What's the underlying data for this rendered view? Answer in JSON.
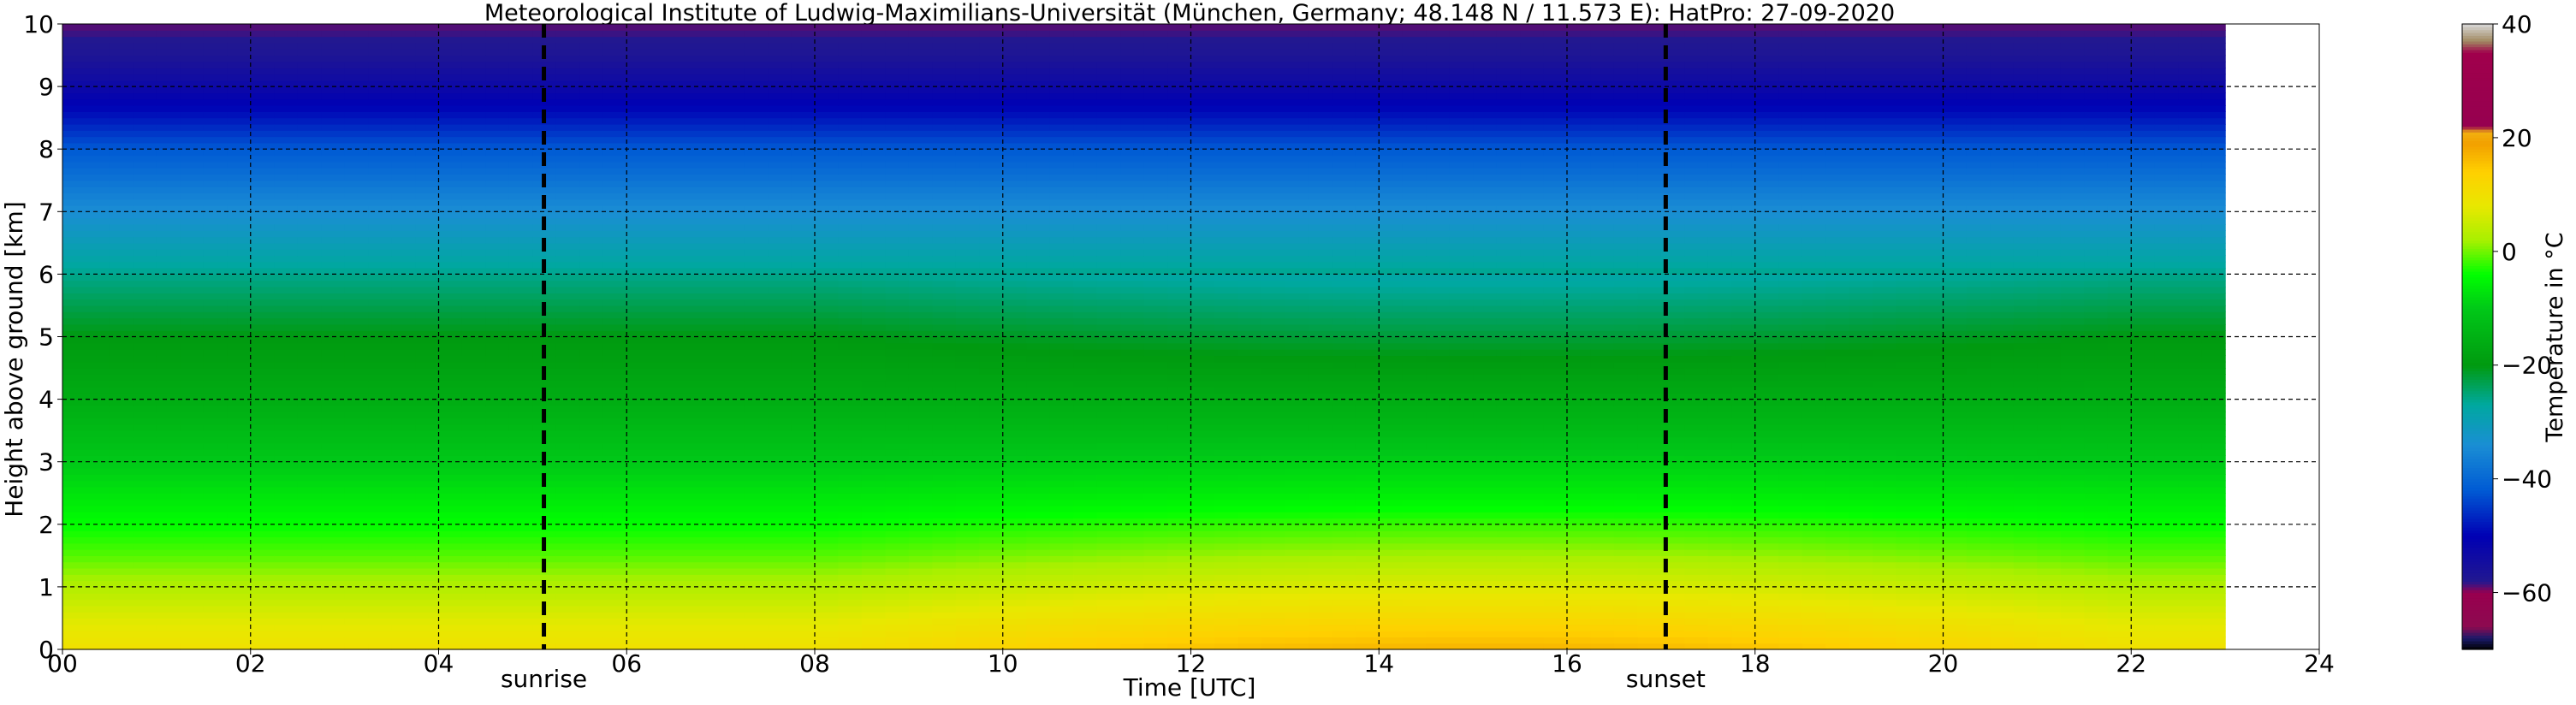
{
  "chart_data": {
    "type": "heatmap",
    "title": "Meteorological Institute of Ludwig-Maximilians-Universität (München, Germany; 48.148 N / 11.573 E):    HatPro: 27-09-2020",
    "xlabel": "Time [UTC]",
    "ylabel": "Height above ground [km]",
    "xlim": [
      0,
      24
    ],
    "ylim": [
      0,
      10
    ],
    "x_ticks": [
      0,
      2,
      4,
      6,
      8,
      10,
      12,
      14,
      16,
      18,
      20,
      22,
      24
    ],
    "x_tick_labels": [
      "00",
      "02",
      "04",
      "06",
      "08",
      "10",
      "12",
      "14",
      "16",
      "18",
      "20",
      "22",
      "24"
    ],
    "y_ticks": [
      0,
      1,
      2,
      3,
      4,
      5,
      6,
      7,
      8,
      9,
      10
    ],
    "y_tick_labels": [
      "0",
      "1",
      "2",
      "3",
      "4",
      "5",
      "6",
      "7",
      "8",
      "9",
      "10"
    ],
    "grid": true,
    "data_end_time": 23,
    "events": [
      {
        "label": "sunrise",
        "time": 5.12
      },
      {
        "label": "sunset",
        "time": 17.05
      }
    ],
    "temperature_profile": {
      "height_km": [
        0,
        0.5,
        1,
        1.5,
        2,
        2.5,
        3,
        3.5,
        4,
        4.5,
        5,
        5.5,
        6,
        6.5,
        7,
        7.5,
        8,
        8.5,
        9,
        9.5,
        10
      ],
      "temp_c_night": [
        10,
        7,
        3,
        -1,
        -4,
        -7,
        -10,
        -13,
        -16,
        -18,
        -20,
        -23,
        -26,
        -30,
        -34,
        -38,
        -42,
        -48,
        -53,
        -57,
        -59
      ],
      "temp_c_afternoon": [
        17,
        12,
        7,
        2,
        -2,
        -6,
        -9,
        -13,
        -16,
        -19,
        -22,
        -25,
        -28,
        -31,
        -35,
        -40,
        -45,
        -50,
        -54,
        -57,
        -59
      ]
    },
    "colorbar": {
      "label": "Temperature in °C",
      "min": -70,
      "max": 40,
      "ticks": [
        40,
        20,
        0,
        -20,
        -40,
        -60
      ],
      "tick_labels": [
        "40",
        "20",
        "0",
        "−20",
        "−40",
        "−60"
      ],
      "stops": [
        {
          "value": -70,
          "color": "#000000"
        },
        {
          "value": -68,
          "color": "#1a1a6a"
        },
        {
          "value": -66,
          "color": "#8c0a50"
        },
        {
          "value": -60,
          "color": "#98004f"
        },
        {
          "value": -58,
          "color": "#221890"
        },
        {
          "value": -50,
          "color": "#0000b4"
        },
        {
          "value": -42,
          "color": "#005ad4"
        },
        {
          "value": -34,
          "color": "#1a8ed4"
        },
        {
          "value": -27,
          "color": "#00a8a0"
        },
        {
          "value": -20,
          "color": "#009a10"
        },
        {
          "value": -10,
          "color": "#00c818"
        },
        {
          "value": -4,
          "color": "#00ff00"
        },
        {
          "value": 2,
          "color": "#a8f000"
        },
        {
          "value": 8,
          "color": "#e8e800"
        },
        {
          "value": 14,
          "color": "#ffd000"
        },
        {
          "value": 19,
          "color": "#f2a000"
        },
        {
          "value": 21,
          "color": "#f2b010"
        },
        {
          "value": 22,
          "color": "#960050"
        },
        {
          "value": 35,
          "color": "#a0004c"
        },
        {
          "value": 37,
          "color": "#a08860"
        },
        {
          "value": 40,
          "color": "#d8d8d8"
        }
      ]
    }
  }
}
